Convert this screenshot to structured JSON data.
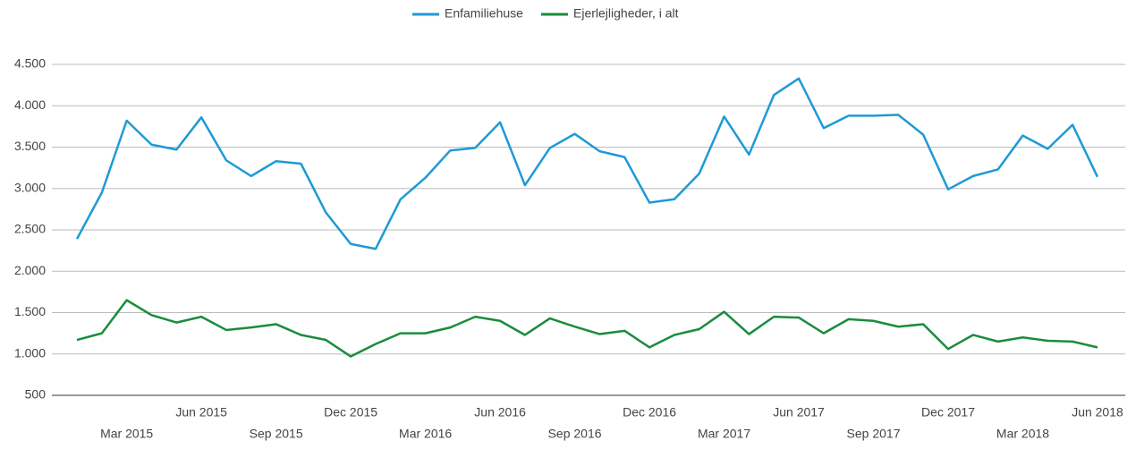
{
  "chart_data": {
    "type": "line",
    "categories": [
      null,
      null,
      "Mar 2015",
      null,
      null,
      "Jun 2015",
      null,
      null,
      "Sep 2015",
      null,
      null,
      "Dec 2015",
      null,
      null,
      "Mar 2016",
      null,
      null,
      "Jun 2016",
      null,
      null,
      "Sep 2016",
      null,
      null,
      "Dec 2016",
      null,
      null,
      "Mar 2017",
      null,
      null,
      "Jun 2017",
      null,
      null,
      "Sep 2017",
      null,
      null,
      "Dec 2017",
      null,
      null,
      "Mar 2018",
      null,
      null,
      "Jun 2018"
    ],
    "series": [
      {
        "name": "Enfamiliehuse",
        "color": "#1e9ad6",
        "values": [
          2390,
          2950,
          3820,
          3530,
          3470,
          3860,
          3340,
          3150,
          3330,
          3300,
          2710,
          2330,
          2270,
          2870,
          3130,
          3460,
          3490,
          3800,
          3040,
          3490,
          3660,
          3450,
          3380,
          2830,
          2870,
          3180,
          3870,
          3410,
          4130,
          4330,
          3730,
          3880,
          3880,
          3890,
          3650,
          2990,
          3150,
          3230,
          3640,
          3480,
          3770,
          3140
        ]
      },
      {
        "name": "Ejerlejligheder, i alt",
        "color": "#1a8c3c",
        "values": [
          1170,
          1250,
          1650,
          1470,
          1380,
          1450,
          1290,
          1320,
          1360,
          1230,
          1170,
          970,
          1120,
          1250,
          1250,
          1320,
          1450,
          1400,
          1230,
          1430,
          1330,
          1240,
          1280,
          1080,
          1230,
          1300,
          1510,
          1240,
          1450,
          1440,
          1250,
          1420,
          1400,
          1330,
          1360,
          1060,
          1230,
          1150,
          1200,
          1160,
          1150,
          1080
        ]
      }
    ],
    "ylim": [
      500,
      4500
    ],
    "yticks": [
      500,
      {
        "value": 1000,
        "label": "1.000"
      },
      {
        "value": 1500,
        "label": "1.500"
      },
      {
        "value": 2000,
        "label": "2.000"
      },
      {
        "value": 2500,
        "label": "2.500"
      },
      {
        "value": 3000,
        "label": "3.000"
      },
      {
        "value": 3500,
        "label": "3.500"
      },
      {
        "value": 4000,
        "label": "4.000"
      },
      {
        "value": 4500,
        "label": "4.500"
      }
    ],
    "grid": true,
    "legend": "top"
  }
}
